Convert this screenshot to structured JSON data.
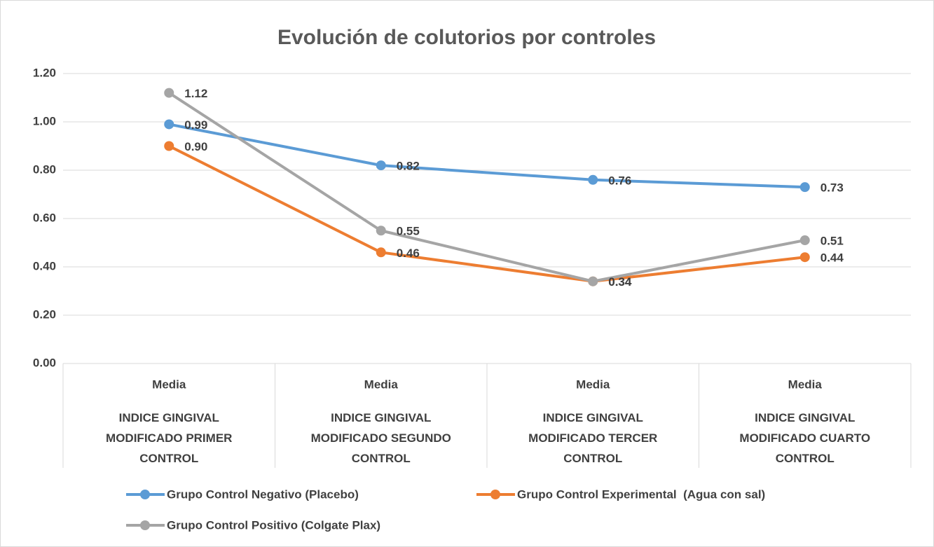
{
  "chart_data": {
    "type": "line",
    "title": "Evolución de colutorios por controles",
    "categories": [
      [
        "Media",
        "INDICE GINGIVAL MODIFICADO PRIMER CONTROL"
      ],
      [
        "Media",
        "INDICE GINGIVAL MODIFICADO SEGUNDO CONTROL"
      ],
      [
        "Media",
        "INDICE GINGIVAL MODIFICADO TERCER CONTROL"
      ],
      [
        "Media",
        "INDICE GINGIVAL MODIFICADO CUARTO CONTROL"
      ]
    ],
    "series": [
      {
        "name": "Grupo Control Negativo (Placebo)",
        "color": "#5b9bd5",
        "values": [
          0.99,
          0.82,
          0.76,
          0.73
        ],
        "value_labels": [
          "0.99",
          "0.82",
          "0.76",
          "0.73"
        ]
      },
      {
        "name": "Grupo Control Experimental  (Agua con sal)",
        "color": "#ed7d31",
        "values": [
          0.9,
          0.46,
          0.34,
          0.44
        ],
        "value_labels": [
          "0.90",
          "0.46",
          "0.34",
          "0.44"
        ]
      },
      {
        "name": "Grupo Control Positivo (Colgate Plax)",
        "color": "#a5a5a5",
        "values": [
          1.12,
          0.55,
          0.34,
          0.51
        ],
        "value_labels": [
          "1.12",
          "0.55",
          "0.34",
          "0.51"
        ]
      }
    ],
    "ylim": [
      0,
      1.2
    ],
    "yticks": [
      {
        "value": 0,
        "label": "0.00"
      },
      {
        "value": 0.2,
        "label": "0.20"
      },
      {
        "value": 0.4,
        "label": "0.40"
      },
      {
        "value": 0.6,
        "label": "0.60"
      },
      {
        "value": 0.8,
        "label": "0.80"
      },
      {
        "value": 1.0,
        "label": "1.00"
      },
      {
        "value": 1.2,
        "label": "1.20"
      }
    ],
    "grid": true,
    "legend": "bottom"
  }
}
